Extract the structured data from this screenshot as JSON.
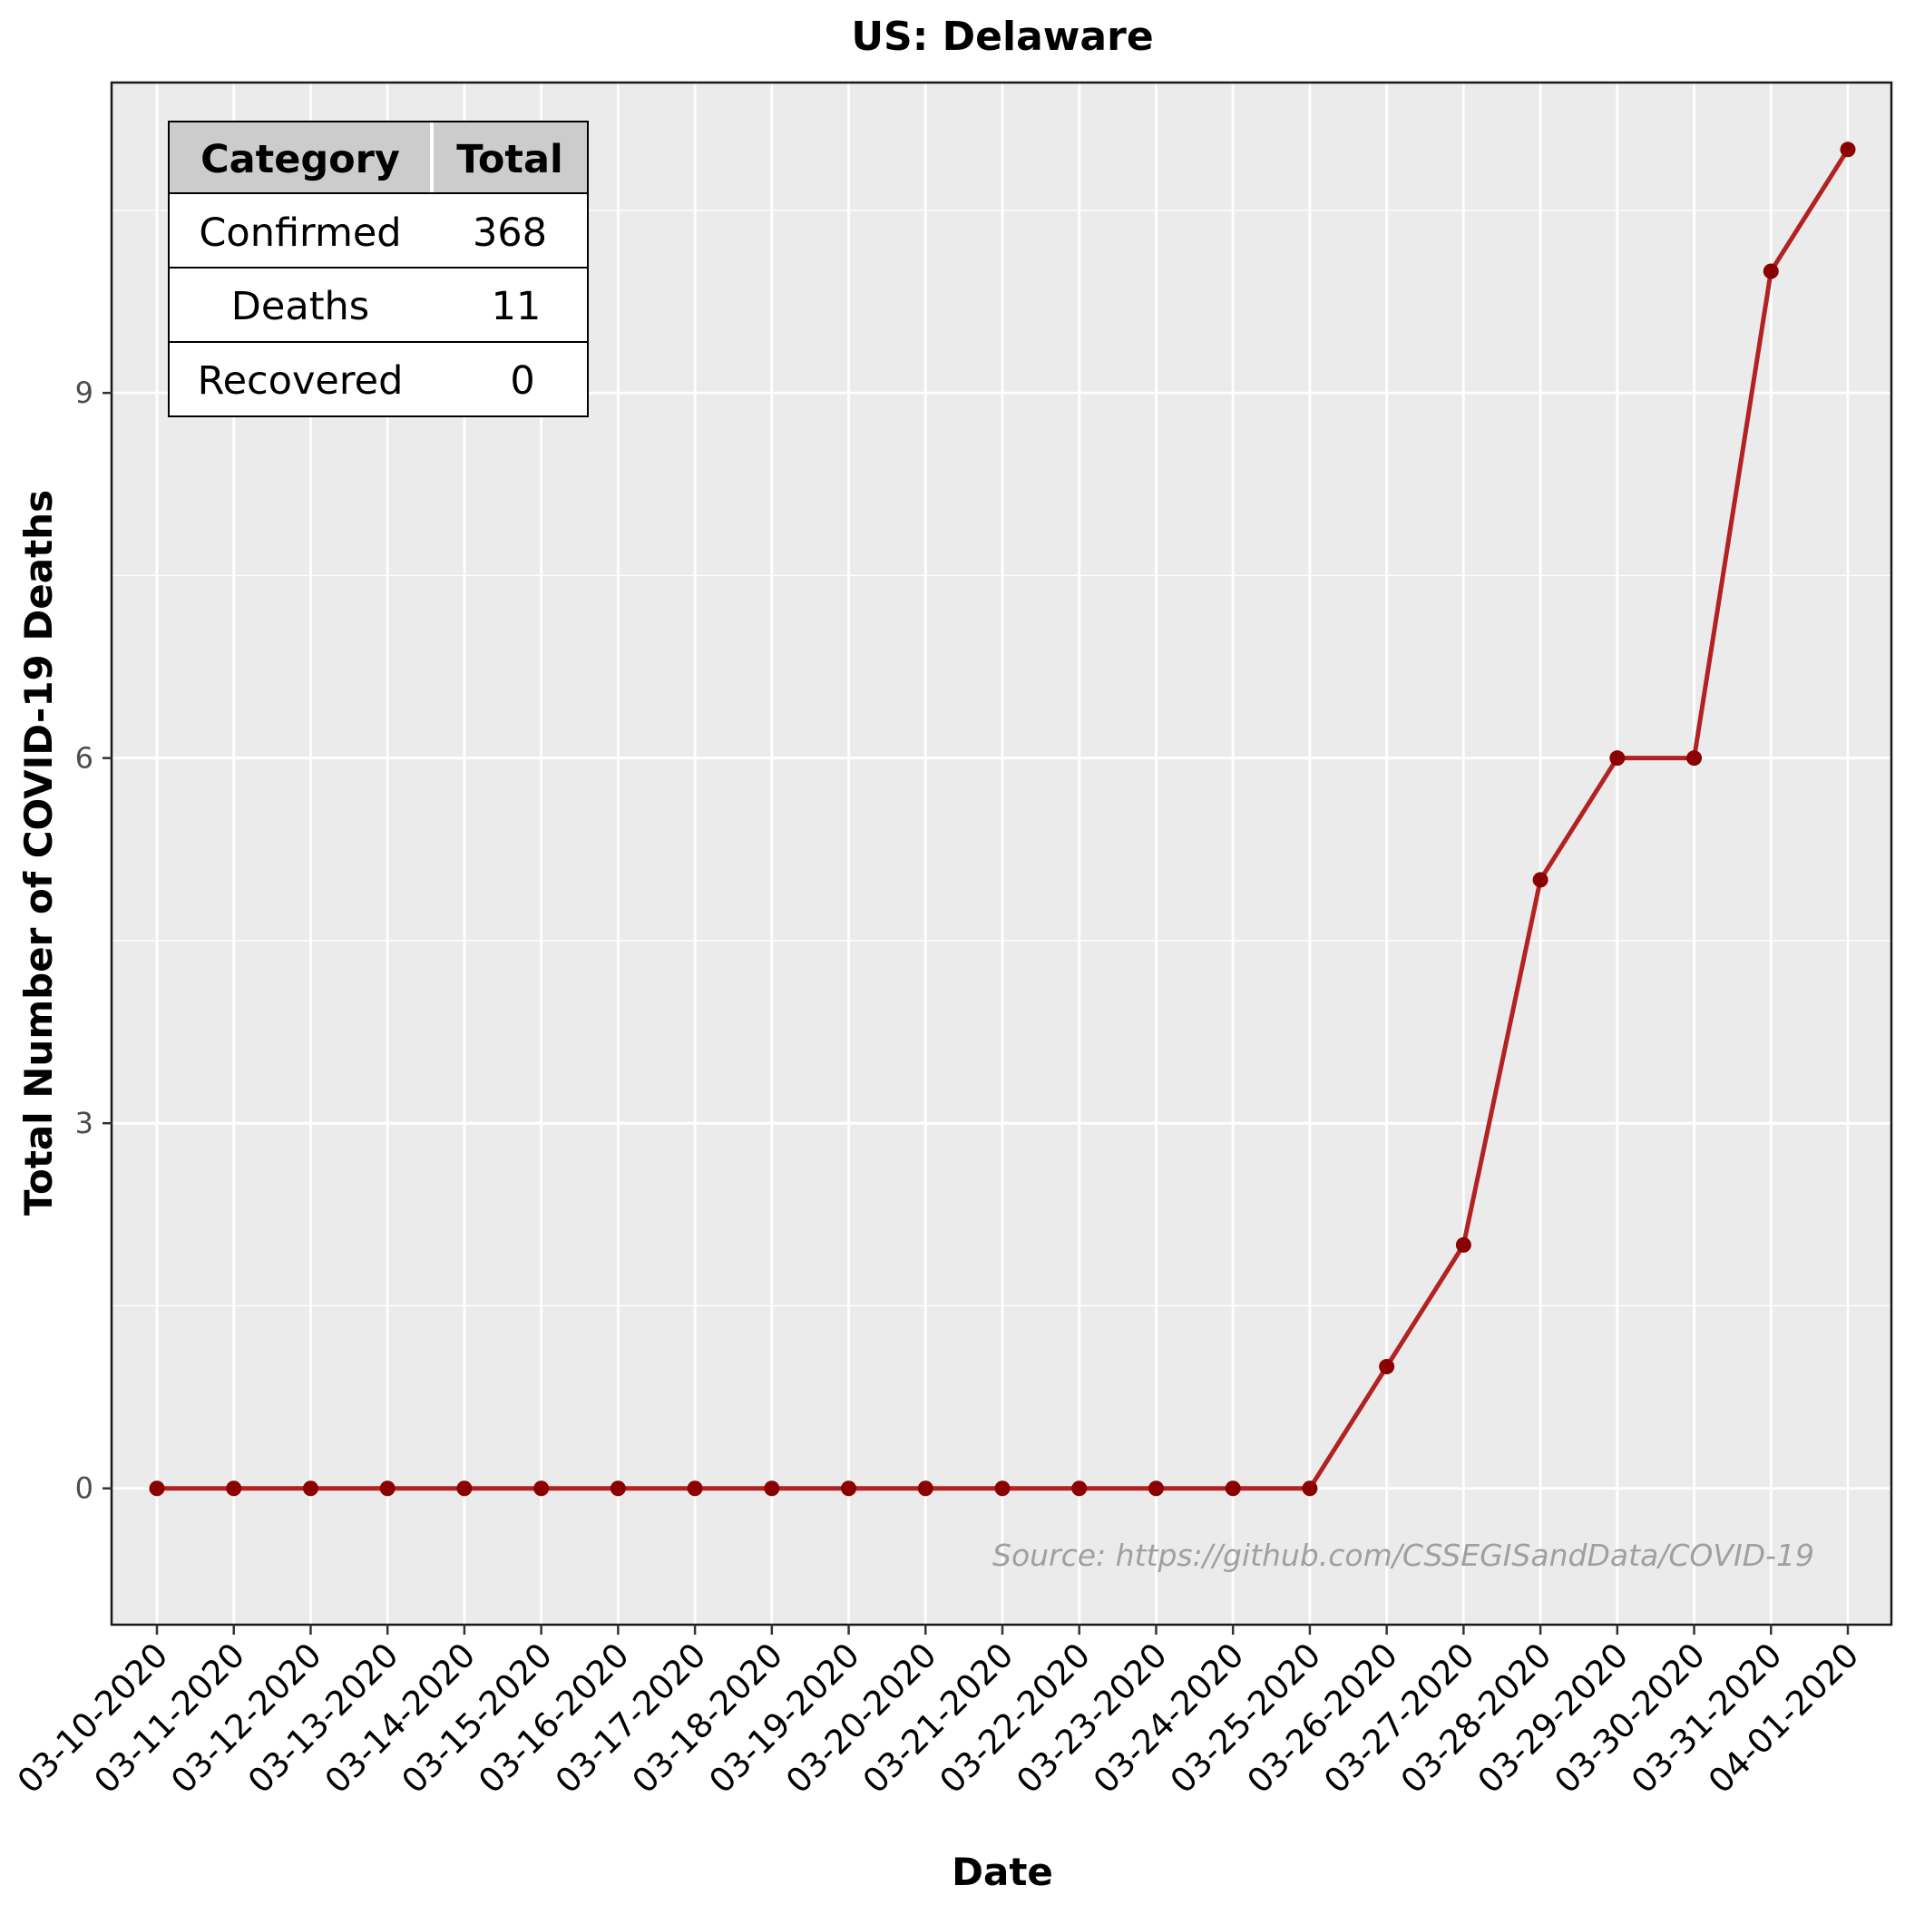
{
  "chart_data": {
    "type": "line",
    "title": "US: Delaware",
    "xlabel": "Date",
    "ylabel": "Total Number of COVID-19 Deaths",
    "x": [
      "03-10-2020",
      "03-11-2020",
      "03-12-2020",
      "03-13-2020",
      "03-14-2020",
      "03-15-2020",
      "03-16-2020",
      "03-17-2020",
      "03-18-2020",
      "03-19-2020",
      "03-20-2020",
      "03-21-2020",
      "03-22-2020",
      "03-23-2020",
      "03-24-2020",
      "03-25-2020",
      "03-26-2020",
      "03-27-2020",
      "03-28-2020",
      "03-29-2020",
      "03-30-2020",
      "03-31-2020",
      "04-01-2020"
    ],
    "values": [
      0,
      0,
      0,
      0,
      0,
      0,
      0,
      0,
      0,
      0,
      0,
      0,
      0,
      0,
      0,
      0,
      1,
      2,
      5,
      6,
      6,
      10,
      11
    ],
    "ylim": [
      -1.12,
      11.55
    ],
    "yticks": [
      0,
      3,
      6,
      9
    ],
    "grid": true,
    "source": "Source: https://github.com/CSSEGISandData/COVID-19",
    "colors": {
      "line": "#b22222",
      "point": "#8b0000",
      "panel": "#ebebeb",
      "grid": "#ffffff"
    }
  },
  "table": {
    "headers": [
      "Category",
      "Total"
    ],
    "rows": [
      {
        "category": "Confirmed",
        "total": "368"
      },
      {
        "category": "Deaths",
        "total": "11"
      },
      {
        "category": "Recovered",
        "total": "0"
      }
    ]
  }
}
